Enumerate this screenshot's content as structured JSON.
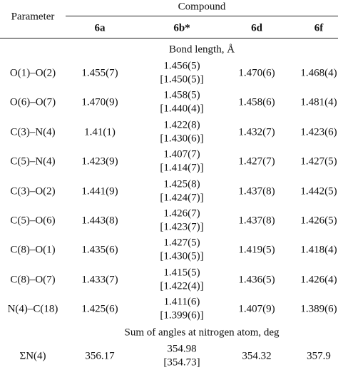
{
  "header": {
    "parameter": "Parameter",
    "compound": "Compound",
    "columns": [
      "6a",
      "6b*",
      "6d",
      "6f"
    ]
  },
  "sections": [
    {
      "title": "Bond length, Å",
      "rows": [
        {
          "parameter": "O(1)–O(2)",
          "values": [
            "1.455(7)",
            "1.456(5)",
            "1.470(6)",
            "1.468(4)"
          ],
          "bracket": "[1.450(5)]"
        },
        {
          "parameter": "O(6)–O(7)",
          "values": [
            "1.470(9)",
            "1.458(5)",
            "1.458(6)",
            "1.481(4)"
          ],
          "bracket": "[1.440(4)]"
        },
        {
          "parameter": "C(3)–N(4)",
          "values": [
            "1.41(1)",
            "1.422(8)",
            "1.432(7)",
            "1.423(6)"
          ],
          "bracket": "[1.430(6)]"
        },
        {
          "parameter": "C(5)–N(4)",
          "values": [
            "1.423(9)",
            "1.407(7)",
            "1.427(7)",
            "1.427(5)"
          ],
          "bracket": "[1.414(7)]"
        },
        {
          "parameter": "C(3)–O(2)",
          "values": [
            "1.441(9)",
            "1.425(8)",
            "1.437(8)",
            "1.442(5)"
          ],
          "bracket": "[1.424(7)]"
        },
        {
          "parameter": "C(5)–O(6)",
          "values": [
            "1.443(8)",
            "1.426(7)",
            "1.437(8)",
            "1.426(5)"
          ],
          "bracket": "[1.423(7)]"
        },
        {
          "parameter": "C(8)–O(1)",
          "values": [
            "1.435(6)",
            "1.427(5)",
            "1.419(5)",
            "1.418(4)"
          ],
          "bracket": "[1.430(5)]"
        },
        {
          "parameter": "C(8)–O(7)",
          "values": [
            "1.433(7)",
            "1.415(5)",
            "1.436(5)",
            "1.426(4)"
          ],
          "bracket": "[1.422(4)]"
        },
        {
          "parameter": "N(4)–C(18)",
          "values": [
            "1.425(6)",
            "1.411(6)",
            "1.407(9)",
            "1.389(6)"
          ],
          "bracket": "[1.399(6)]"
        }
      ]
    },
    {
      "title": "Sum of angles at nitrogen atom, deg",
      "rows": [
        {
          "parameter": "ΣN(4)",
          "values": [
            "356.17",
            "354.98",
            "354.32",
            "357.9"
          ],
          "bracket": "[354.73]"
        }
      ]
    }
  ]
}
